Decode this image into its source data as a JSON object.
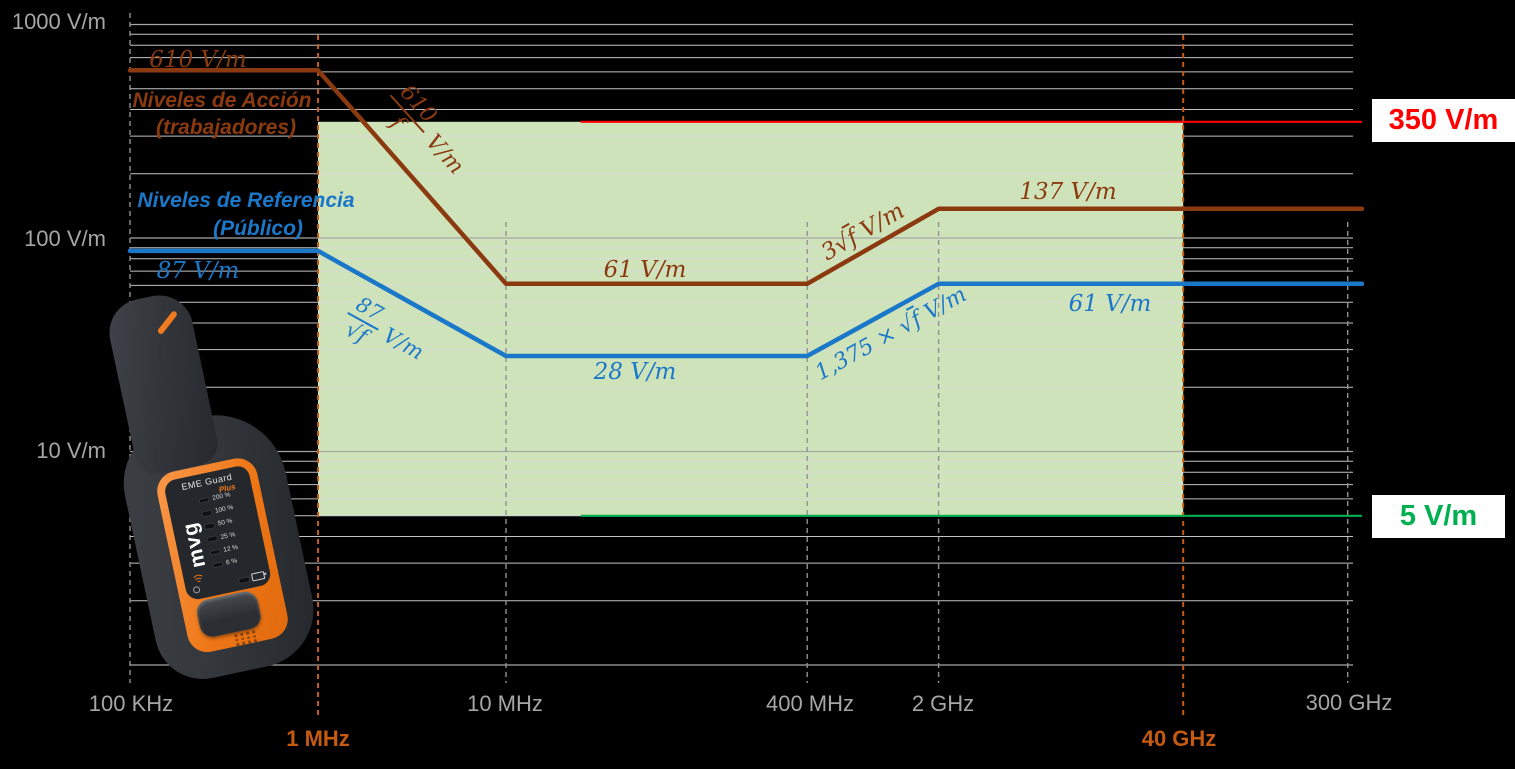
{
  "chart_data": {
    "type": "line",
    "x_axis": {
      "scale": "log",
      "unit": "Hz",
      "ticks": [
        {
          "label": "100 KHz",
          "f_mhz": 0.1,
          "dash": "full"
        },
        {
          "label": "1 MHz",
          "f_mhz": 1,
          "dash": "orange"
        },
        {
          "label": "10 MHz",
          "f_mhz": 10,
          "dash": "mid"
        },
        {
          "label": "400 MHz",
          "f_mhz": 400,
          "dash": "mid"
        },
        {
          "label": "2 GHz",
          "f_mhz": 2000,
          "dash": "mid"
        },
        {
          "label": "40 GHz",
          "f_mhz": 40000,
          "dash": "orange"
        },
        {
          "label": "300 GHz",
          "f_mhz": 300000,
          "dash": "mid"
        }
      ]
    },
    "y_axis": {
      "scale": "log",
      "unit": "V/m",
      "ticks": [
        {
          "label": "1000 V/m",
          "value": 1000
        },
        {
          "label": "100 V/m",
          "value": 100
        },
        {
          "label": "10 V/m",
          "value": 10
        }
      ]
    },
    "series": [
      {
        "name": "Niveles de Acción (trabajadores)",
        "color": "#8B3A0F",
        "points": [
          [
            0.1,
            610
          ],
          [
            1,
            610
          ],
          [
            10,
            61
          ],
          [
            400,
            61
          ],
          [
            2000,
            137
          ],
          [
            300000,
            137
          ]
        ]
      },
      {
        "name": "Niveles de Referencia (Público)",
        "color": "#1B78C8",
        "points": [
          [
            0.1,
            87
          ],
          [
            1,
            87
          ],
          [
            10,
            28
          ],
          [
            400,
            28
          ],
          [
            2000,
            61
          ],
          [
            300000,
            61
          ]
        ]
      }
    ],
    "reference_lines": [
      {
        "label": "350 V/m",
        "value": 350,
        "color": "#FF0000",
        "from_mhz": 25
      },
      {
        "label": "5 V/m",
        "value": 5,
        "color": "#00B050",
        "from_mhz": 25
      }
    ],
    "shaded_region": {
      "from_mhz": 1,
      "to_mhz": 40000,
      "top": 350,
      "bottom": 5,
      "color": "#CFE3BB"
    },
    "style": {
      "grid_minor": "#D9D9D9",
      "grid_major": "#A6A6A6",
      "dash_gray": "#919191",
      "dash_orange": "#C55A11",
      "background": "#000000"
    },
    "annotations": {
      "worker_legend_1": "Niveles de Acción",
      "worker_legend_2": "(trabajadores)",
      "public_legend_1": "Niveles de Referencia",
      "public_legend_2": "(Público)",
      "worker_flat_low": "610 V/m",
      "worker_slope_num": "610",
      "worker_slope_den": "f",
      "worker_slope_suffix": "V/m",
      "worker_flat_mid": "61 V/m",
      "worker_rise_prefix": "3√",
      "worker_rise_rad": "f",
      "worker_rise_suffix": " V/m",
      "worker_flat_high": "137 V/m",
      "public_flat_low": "87 V/m",
      "public_slope_num": "87",
      "public_slope_den_prefix": "√",
      "public_slope_den_rad": "f",
      "public_slope_suffix": "V/m",
      "public_flat_mid": "28 V/m",
      "public_rise_prefix": "1,375 × √",
      "public_rise_rad": "f",
      "public_rise_suffix": " V/m",
      "public_flat_high": "61 V/m"
    }
  },
  "device": {
    "name": "EME Guard",
    "edition": "Plus",
    "brand": "mvg",
    "led_labels": [
      "200 %",
      "100 %",
      "50 %",
      "25 %",
      "12 %",
      "6 %"
    ]
  }
}
